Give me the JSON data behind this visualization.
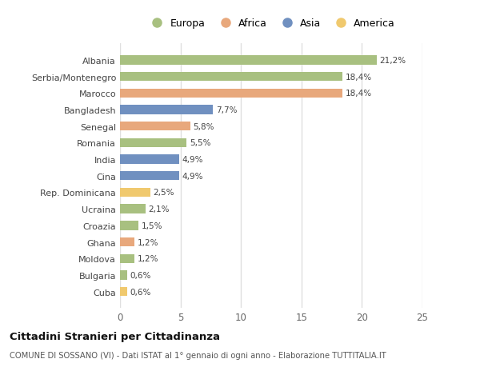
{
  "categories": [
    "Cuba",
    "Bulgaria",
    "Moldova",
    "Ghana",
    "Croazia",
    "Ucraina",
    "Rep. Dominicana",
    "Cina",
    "India",
    "Romania",
    "Senegal",
    "Bangladesh",
    "Marocco",
    "Serbia/Montenegro",
    "Albania"
  ],
  "values": [
    0.6,
    0.6,
    1.2,
    1.2,
    1.5,
    2.1,
    2.5,
    4.9,
    4.9,
    5.5,
    5.8,
    7.7,
    18.4,
    18.4,
    21.2
  ],
  "colors": [
    "#f0c96e",
    "#a8c080",
    "#a8c080",
    "#e8a87c",
    "#a8c080",
    "#a8c080",
    "#f0c96e",
    "#7090c0",
    "#7090c0",
    "#a8c080",
    "#e8a87c",
    "#7090c0",
    "#e8a87c",
    "#a8c080",
    "#a8c080"
  ],
  "labels": [
    "0,6%",
    "0,6%",
    "1,2%",
    "1,2%",
    "1,5%",
    "2,1%",
    "2,5%",
    "4,9%",
    "4,9%",
    "5,5%",
    "5,8%",
    "7,7%",
    "18,4%",
    "18,4%",
    "21,2%"
  ],
  "legend_names": [
    "Europa",
    "Africa",
    "Asia",
    "America"
  ],
  "legend_colors": [
    "#a8c080",
    "#e8a87c",
    "#7090c0",
    "#f0c96e"
  ],
  "xlim": [
    0,
    25
  ],
  "xticks": [
    0,
    5,
    10,
    15,
    20,
    25
  ],
  "title": "Cittadini Stranieri per Cittadinanza",
  "subtitle": "COMUNE DI SOSSANO (VI) - Dati ISTAT al 1° gennaio di ogni anno - Elaborazione TUTTITALIA.IT",
  "bg_color": "#ffffff",
  "grid_color": "#e0e0e0",
  "bar_height": 0.55
}
